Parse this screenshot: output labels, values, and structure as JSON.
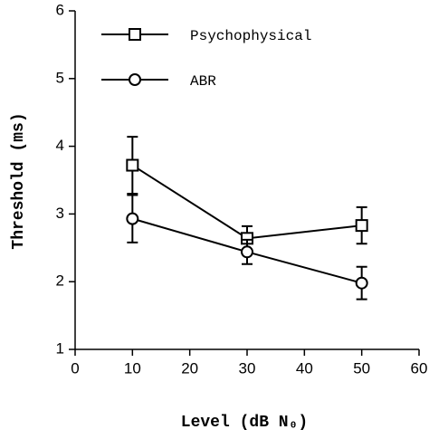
{
  "chart_data": {
    "type": "line",
    "x_label": "Level (dB N₀)",
    "y_label": "Threshold (ms)",
    "x": [
      10,
      30,
      50
    ],
    "series": [
      {
        "name": "Psychophysical",
        "marker": "square",
        "color": "#000000",
        "values": [
          3.72,
          2.64,
          2.83
        ],
        "errors": [
          0.42,
          0.18,
          0.27
        ]
      },
      {
        "name": "ABR",
        "marker": "circle",
        "color": "#000000",
        "values": [
          2.93,
          2.44,
          1.98
        ],
        "errors": [
          0.35,
          0.18,
          0.24
        ]
      }
    ],
    "xlim": [
      0,
      60
    ],
    "xticks": [
      0,
      10,
      20,
      30,
      40,
      50,
      60
    ],
    "ylim": [
      1,
      6
    ],
    "yticks": [
      1,
      2,
      3,
      4,
      5,
      6
    ],
    "grid": false,
    "legend": "upper left"
  }
}
